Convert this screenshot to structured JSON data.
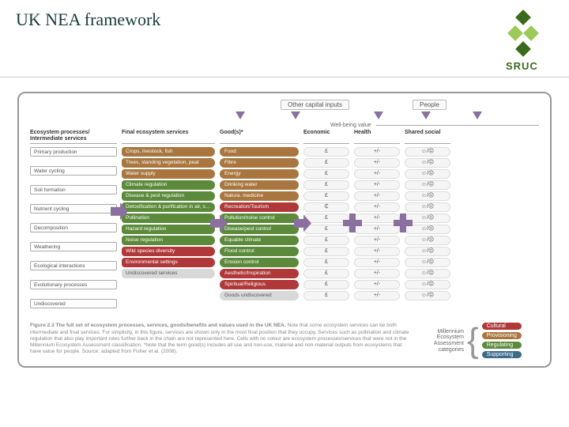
{
  "title": "UK NEA framework",
  "logo": {
    "text": "SRUC",
    "dark": "#3a6b1a",
    "light": "#9cc958"
  },
  "top_labels": {
    "left": "Other capital inputs",
    "right": "People"
  },
  "wellbeing_label": "Well-being value",
  "headers": {
    "c1": "Ecosystem processes/\nIntermediate services",
    "c2": "Final ecosystem services",
    "c3": "Good(s)*",
    "c4": "Economic",
    "c5": "Health",
    "c6": "Shared social"
  },
  "colors": {
    "provisioning": "#a8763e",
    "regulating": "#5b8a3a",
    "cultural": "#b03838",
    "supporting": "#3a6b8a",
    "none": "#d8d8d8",
    "arrow": "#8b6f9e",
    "frame": "#999999"
  },
  "col1": [
    "Primary production",
    "Water cycling",
    "Soil formation",
    "Nutrient cycling",
    "Decomposition",
    "Weathering",
    "Ecological interactions",
    "Evolutionary processes",
    "Undiscovered"
  ],
  "col2": [
    {
      "t": "Crops, livestock, fish",
      "c": "c-prov"
    },
    {
      "t": "Trees, standing vegetation, peat",
      "c": "c-prov"
    },
    {
      "t": "Water supply",
      "c": "c-prov"
    },
    {
      "t": "Climate regulation",
      "c": "c-reg"
    },
    {
      "t": "Disease & pest regulation",
      "c": "c-reg"
    },
    {
      "t": "Detoxification & purification in air, soils & water",
      "c": "c-reg"
    },
    {
      "t": "Pollination",
      "c": "c-reg"
    },
    {
      "t": "Hazard regulation",
      "c": "c-reg"
    },
    {
      "t": "Noise regulation",
      "c": "c-reg"
    },
    {
      "t": "Wild species diversity",
      "c": "c-cult"
    },
    {
      "t": "Environmental settings",
      "c": "c-cult"
    },
    {
      "t": "Undiscovered services",
      "c": "c-none"
    }
  ],
  "col3": [
    {
      "t": "Food",
      "c": "c-prov"
    },
    {
      "t": "Fibre",
      "c": "c-prov"
    },
    {
      "t": "Energy",
      "c": "c-prov"
    },
    {
      "t": "Drinking water",
      "c": "c-prov"
    },
    {
      "t": "Natura. medicine",
      "c": "c-prov"
    },
    {
      "t": "Recreation/Tourism",
      "c": "c-cult"
    },
    {
      "t": "Pollution/noise control",
      "c": "c-reg"
    },
    {
      "t": "Disease/pest control",
      "c": "c-reg"
    },
    {
      "t": "Equable climate",
      "c": "c-reg"
    },
    {
      "t": "Flood control",
      "c": "c-reg"
    },
    {
      "t": "Erosion control",
      "c": "c-reg"
    },
    {
      "t": "Aesthetic/Inspiration",
      "c": "c-cult"
    },
    {
      "t": "Spiritual/Religious",
      "c": "c-cult"
    },
    {
      "t": "Goods undiscovered",
      "c": "c-none"
    }
  ],
  "value_rows": [
    {
      "e": "£",
      "h": "+/-",
      "s": "☺/☹"
    },
    {
      "e": "£",
      "h": "+/-",
      "s": "☺/☹"
    },
    {
      "e": "£",
      "h": "+/-",
      "s": "☺/☹"
    },
    {
      "e": "£",
      "h": "+/-",
      "s": "☺/☹"
    },
    {
      "e": "£",
      "h": "+/-",
      "s": "☺/☹"
    },
    {
      "e": "₵",
      "h": "+/-",
      "s": "☺/☹"
    },
    {
      "e": "£",
      "h": "+/-",
      "s": "☺/☹"
    },
    {
      "e": "£",
      "h": "+/-",
      "s": "☺/☹"
    },
    {
      "e": "£",
      "h": "+/-",
      "s": "☺/☹"
    },
    {
      "e": "£",
      "h": "+/-",
      "s": "☺/☹"
    },
    {
      "e": "£",
      "h": "+/-",
      "s": "☺/☹"
    },
    {
      "e": "£",
      "h": "+/-",
      "s": "☺/☹"
    },
    {
      "e": "£",
      "h": "+/-",
      "s": "☺/☹"
    },
    {
      "e": "£",
      "h": "+/-",
      "s": "☺/☹"
    }
  ],
  "caption": {
    "label": "Figure 2.3 The full set of ecosystem processes, services, goods/benefits and values used in the UK NEA.",
    "body": "Note that some ecosystem services can be both intermediate and final services. For simplicity, in this figure, services are shown only in the most final position that they occupy. Services such as pollination and climate regulation that also play important roles further back in the chain are not represented here. Cells with no colour are ecosystem processes/services that were not in the Millennium Ecosystem Assessment classification. *Note that the term good(s) includes all use and non-use, material and non-material outputs from ecosystems that have value for people. Source: adapted from Fisher et al. (2008)."
  },
  "legend": {
    "title": "Millennium Ecosystem Assessment categories",
    "items": [
      {
        "t": "Cultural",
        "c": "c-cult"
      },
      {
        "t": "Provisioning",
        "c": "c-prov"
      },
      {
        "t": "Regulating",
        "c": "c-reg"
      },
      {
        "t": "Supporting",
        "c": "c-supp"
      }
    ]
  }
}
